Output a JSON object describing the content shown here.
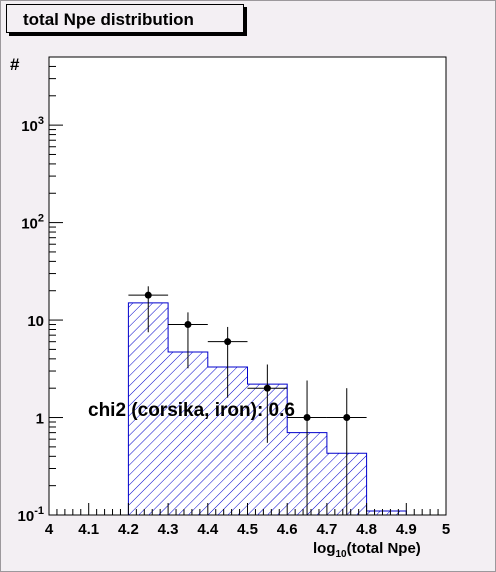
{
  "chart_data": {
    "type": "histogram",
    "title": "total Npe distribution",
    "xlabel": {
      "prefix": "log",
      "subscript": "10",
      "suffix": "(total Npe)"
    },
    "ylabel": "#",
    "xlim": [
      4,
      5
    ],
    "ylim": [
      0.1,
      5000
    ],
    "yscale": "log",
    "grid": false,
    "x_tick_labels": [
      "4",
      "4.1",
      "4.2",
      "4.3",
      "4.4",
      "4.5",
      "4.6",
      "4.7",
      "4.8",
      "4.9",
      "5"
    ],
    "y_tick_labels": [
      {
        "value": 0.1,
        "base": "10",
        "exp": "-1"
      },
      {
        "value": 1,
        "base": "1",
        "exp": ""
      },
      {
        "value": 10,
        "base": "10",
        "exp": ""
      },
      {
        "value": 100,
        "base": "10",
        "exp": "2"
      },
      {
        "value": 1000,
        "base": "10",
        "exp": "3"
      }
    ],
    "annotation": "chi2 (corsika, iron): 0.6",
    "histogram": {
      "bin_edges": [
        4.2,
        4.3,
        4.4,
        4.5,
        4.6,
        4.7,
        4.8,
        4.9
      ],
      "values": [
        15,
        4.7,
        3.3,
        2.2,
        0.7,
        0.43,
        0.11
      ],
      "color": "#0000cc",
      "fill": "hatched"
    },
    "points": {
      "x": [
        4.25,
        4.35,
        4.45,
        4.55,
        4.65,
        4.75
      ],
      "y": [
        18,
        9,
        6,
        2,
        1,
        1
      ],
      "yerr_low": [
        10.5,
        5.8,
        4.4,
        1.45,
        1.0,
        1.0
      ],
      "yerr_high": [
        4.2,
        3.0,
        2.5,
        1.5,
        1.4,
        1.0
      ],
      "xerr": 0.05,
      "color": "#000000"
    }
  }
}
